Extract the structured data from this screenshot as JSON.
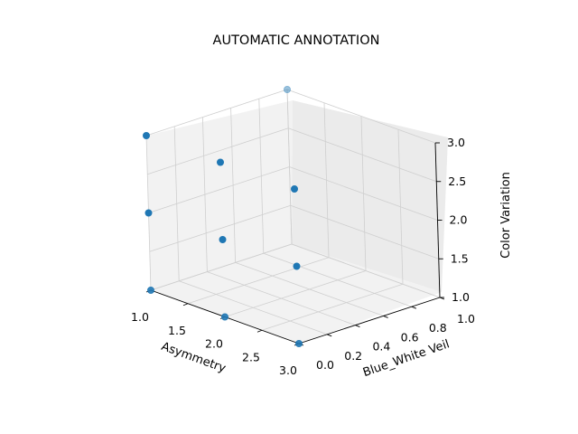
{
  "chart_data": {
    "type": "scatter3d",
    "title": "AUTOMATIC ANNOTATION",
    "xlabel": "Asymmetry",
    "ylabel": "Blue_White Veil",
    "zlabel": "Color Variation",
    "xlim": [
      1.0,
      3.0
    ],
    "ylim": [
      0.0,
      1.0
    ],
    "zlim": [
      1.0,
      3.0
    ],
    "xticks": [
      1.0,
      1.5,
      2.0,
      2.5,
      3.0
    ],
    "yticks": [
      0.0,
      0.2,
      0.4,
      0.6,
      0.8,
      1.0
    ],
    "zticks": [
      1.0,
      1.5,
      2.0,
      2.5,
      3.0
    ],
    "xtick_labels": [
      "1.0",
      "1.5",
      "2.0",
      "2.5",
      "3.0"
    ],
    "ytick_labels": [
      "0.0",
      "0.2",
      "0.4",
      "0.6",
      "0.8",
      "1.0"
    ],
    "ztick_labels": [
      "1.0",
      "1.5",
      "2.0",
      "2.5",
      "3.0"
    ],
    "grid": true,
    "marker_color": "#1f77b4",
    "points": [
      {
        "x": 1,
        "y": 0,
        "z": 1
      },
      {
        "x": 1,
        "y": 0,
        "z": 2
      },
      {
        "x": 1,
        "y": 0,
        "z": 3
      },
      {
        "x": 2,
        "y": 0,
        "z": 1
      },
      {
        "x": 2,
        "y": 0,
        "z": 2
      },
      {
        "x": 2,
        "y": 0,
        "z": 3
      },
      {
        "x": 3,
        "y": 0,
        "z": 1
      },
      {
        "x": 3,
        "y": 0,
        "z": 2
      },
      {
        "x": 3,
        "y": 0,
        "z": 3
      },
      {
        "x": 1,
        "y": 1,
        "z": 3
      }
    ]
  }
}
